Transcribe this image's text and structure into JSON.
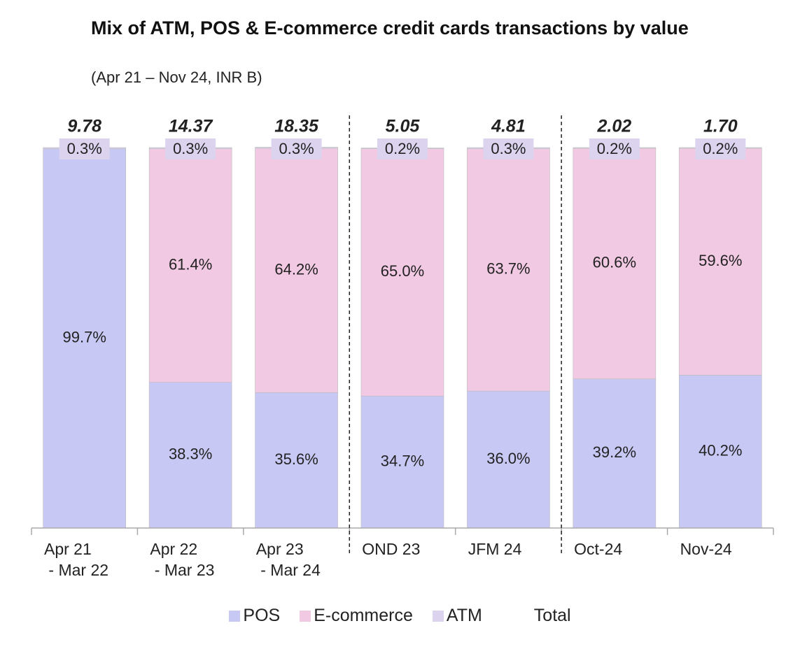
{
  "chart_data": {
    "type": "stacked_bar_100",
    "title": "Mix of ATM, POS & E-commerce credit cards transactions by value",
    "subtitle": "(Apr 21 – Nov 24, INR B)",
    "categories": [
      "Apr 21\n - Mar 22",
      "Apr 22\n - Mar 23",
      "Apr 23\n - Mar 24",
      "OND 23",
      "JFM 24",
      "Oct-24",
      "Nov-24"
    ],
    "series": [
      {
        "name": "POS",
        "color": "#c8c8f5",
        "values": [
          99.7,
          38.3,
          35.6,
          34.7,
          36.0,
          39.2,
          40.2
        ],
        "value_labels": [
          "99.7%",
          "38.3%",
          "35.6%",
          "34.7%",
          "36.0%",
          "39.2%",
          "40.2%"
        ]
      },
      {
        "name": "E-commerce",
        "color": "#f2c9e3",
        "values": [
          null,
          61.4,
          64.2,
          65.0,
          63.7,
          60.6,
          59.6
        ],
        "value_labels": [
          null,
          "61.4%",
          "64.2%",
          "65.0%",
          "63.7%",
          "60.6%",
          "59.6%"
        ]
      },
      {
        "name": "ATM",
        "color": "#dcd3ee",
        "values": [
          0.3,
          0.3,
          0.3,
          0.2,
          0.3,
          0.2,
          0.2
        ],
        "value_labels": [
          "0.3%",
          "0.3%",
          "0.3%",
          "0.2%",
          "0.3%",
          "0.2%",
          "0.2%"
        ]
      }
    ],
    "totals": {
      "name": "Total",
      "values": [
        9.78,
        14.37,
        18.35,
        5.05,
        4.81,
        2.02,
        1.7
      ],
      "value_labels": [
        "9.78",
        "14.37",
        "18.35",
        "5.05",
        "4.81",
        "2.02",
        "1.70"
      ]
    },
    "ylim": [
      0,
      100
    ],
    "dividers_after": [
      2,
      4
    ]
  }
}
